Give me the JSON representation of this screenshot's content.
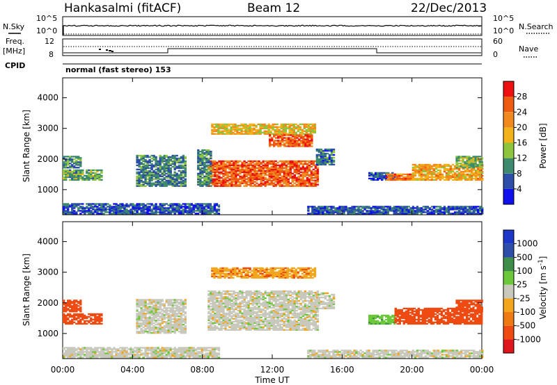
{
  "header": {
    "station": "Hankasalmi (fitACF)",
    "beam": "Beam 12",
    "date": "22/Dec/2013"
  },
  "sky_panel": {
    "left_label": "N.Sky",
    "left_ticks": [
      "10^5",
      "10^0"
    ],
    "right_ticks": [
      "10^5",
      "10^0"
    ],
    "right_label": "N.Search"
  },
  "freq_panel": {
    "left_label_line1": "Freq.",
    "left_label_line2": "[MHz]",
    "left_ticks": [
      "12",
      "8"
    ],
    "right_ticks": [
      "60",
      "0"
    ],
    "right_label": "Nave",
    "cpid_label": "CPID",
    "cpid_text": "normal (fast stereo) 153"
  },
  "colors": {
    "power_scale": [
      "#1010ee",
      "#2c4ea8",
      "#3e8a6c",
      "#8ec43e",
      "#f2b21a",
      "#f08a1e",
      "#ee5a10",
      "#ee1010"
    ],
    "velocity_scale": [
      "#e0141c",
      "#ee4a12",
      "#f07a12",
      "#f2a61e",
      "#c8c8bc",
      "#6cc83a",
      "#3c8e48",
      "#2c4ea8",
      "#1c36c8"
    ]
  },
  "chart_data": [
    {
      "type": "heatmap",
      "title": "Power",
      "ylabel": "Slant Range [km]",
      "xlabel": "",
      "x_ticks": [
        "00:00",
        "04:00",
        "08:00",
        "12:00",
        "16:00",
        "20:00",
        "00:00"
      ],
      "x_range_hours": [
        0,
        24
      ],
      "y_ticks": [
        "1000",
        "2000",
        "3000",
        "4000"
      ],
      "y_range_km": [
        180,
        4650
      ],
      "colorbar_label": "Power [dB]",
      "colorbar_ticks": [
        "4",
        "8",
        "12",
        "16",
        "20",
        "24",
        "28"
      ],
      "color_range": [
        0,
        32
      ],
      "regions": [
        {
          "t0": 0.0,
          "t1": 2.2,
          "r0": 1300,
          "r1": 1650,
          "v": 12
        },
        {
          "t0": 0.0,
          "t1": 1.0,
          "r0": 1700,
          "r1": 2100,
          "v": 10
        },
        {
          "t0": 4.2,
          "t1": 7.0,
          "r0": 1100,
          "r1": 2100,
          "v": 9
        },
        {
          "t0": 0.0,
          "t1": 9.0,
          "r0": 200,
          "r1": 550,
          "v": 6
        },
        {
          "t0": 8.3,
          "t1": 14.6,
          "r0": 1100,
          "r1": 1950,
          "v": 26
        },
        {
          "t0": 7.7,
          "t1": 8.5,
          "r0": 1100,
          "r1": 2300,
          "v": 10
        },
        {
          "t0": 8.5,
          "t1": 14.4,
          "r0": 2800,
          "r1": 3150,
          "v": 18
        },
        {
          "t0": 11.8,
          "t1": 14.2,
          "r0": 2400,
          "r1": 2800,
          "v": 26
        },
        {
          "t0": 14.5,
          "t1": 15.5,
          "r0": 1800,
          "r1": 2300,
          "v": 8
        },
        {
          "t0": 17.5,
          "t1": 19.0,
          "r0": 1300,
          "r1": 1550,
          "v": 7
        },
        {
          "t0": 18.5,
          "t1": 20.0,
          "r0": 1300,
          "r1": 1500,
          "v": 24
        },
        {
          "t0": 20.0,
          "t1": 24.0,
          "r0": 1300,
          "r1": 1800,
          "v": 20
        },
        {
          "t0": 22.5,
          "t1": 24.0,
          "r0": 1700,
          "r1": 2100,
          "v": 13
        },
        {
          "t0": 14.0,
          "t1": 24.0,
          "r0": 200,
          "r1": 450,
          "v": 6
        }
      ]
    },
    {
      "type": "heatmap",
      "title": "Velocity",
      "ylabel": "Slant Range [km]",
      "xlabel": "Time UT",
      "x_ticks": [
        "00:00",
        "04:00",
        "08:00",
        "12:00",
        "16:00",
        "20:00",
        "00:00"
      ],
      "x_range_hours": [
        0,
        24
      ],
      "y_ticks": [
        "1000",
        "2000",
        "3000",
        "4000"
      ],
      "y_range_km": [
        180,
        4650
      ],
      "colorbar_label": "Velocity [m s-1]",
      "colorbar_ticks": [
        "1000",
        "500",
        "100",
        "25",
        "-25",
        "-100",
        "-500",
        "-1000"
      ],
      "regions": [
        {
          "t0": 0.0,
          "t1": 2.2,
          "r0": 1300,
          "r1": 1650,
          "v": -150
        },
        {
          "t0": 0.0,
          "t1": 1.0,
          "r0": 1700,
          "r1": 2100,
          "v": -300
        },
        {
          "t0": 4.2,
          "t1": 7.0,
          "r0": 1000,
          "r1": 2100,
          "v": 0
        },
        {
          "t0": 0.0,
          "t1": 9.0,
          "r0": 200,
          "r1": 550,
          "v": 0
        },
        {
          "t0": 8.3,
          "t1": 14.6,
          "r0": 1100,
          "r1": 2400,
          "v": 0
        },
        {
          "t0": 8.5,
          "t1": 14.4,
          "r0": 2800,
          "r1": 3150,
          "v": -80
        },
        {
          "t0": 14.5,
          "t1": 15.5,
          "r0": 1800,
          "r1": 2300,
          "v": 0
        },
        {
          "t0": 17.5,
          "t1": 19.0,
          "r0": 1300,
          "r1": 1600,
          "v": 80
        },
        {
          "t0": 19.0,
          "t1": 24.0,
          "r0": 1300,
          "r1": 1800,
          "v": -200
        },
        {
          "t0": 22.5,
          "t1": 24.0,
          "r0": 1700,
          "r1": 2100,
          "v": -400
        },
        {
          "t0": 14.0,
          "t1": 24.0,
          "r0": 200,
          "r1": 450,
          "v": 0
        }
      ]
    }
  ]
}
